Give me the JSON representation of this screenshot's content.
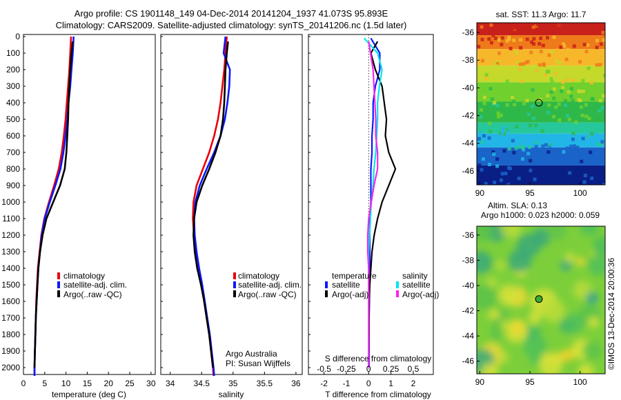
{
  "header": {
    "title_line1": "Argo profile: CS 1901148_149 04-Dec-2014 20141204_1937 41.073S 95.893E",
    "title_line2": "Climatology: CARS2009. Satellite-adjusted climatology: synTS_20141206.nc (1.5d later)"
  },
  "colors": {
    "climatology": "#e8000a",
    "satellite": "#0a18ff",
    "argo": "#000000",
    "sal_satellite": "#00e5ee",
    "sal_argo": "#ff22ee"
  },
  "chart_data": [
    {
      "type": "line",
      "panel": "temperature",
      "xlabel": "temperature (deg C)",
      "xlim": [
        0,
        31
      ],
      "xticks": [
        "0",
        "5",
        "10",
        "15",
        "20",
        "25",
        "30"
      ],
      "ylim": [
        2050,
        0
      ],
      "yticks": [
        "0",
        "100",
        "200",
        "300",
        "400",
        "500",
        "600",
        "700",
        "800",
        "900",
        "1000",
        "1100",
        "1200",
        "1300",
        "1400",
        "1500",
        "1600",
        "1700",
        "1800",
        "1900",
        "2000"
      ],
      "legend": [
        "climatology",
        "satellite-adj. clim.",
        "Argo(..raw -QC)"
      ],
      "series": [
        {
          "name": "climatology",
          "x": [
            11.2,
            11.0,
            10.8,
            10.5,
            10.2,
            9.9,
            9.5,
            9.0,
            8.3,
            7.2,
            6.0,
            4.9,
            4.2,
            3.8,
            3.4,
            3.2,
            3.0,
            2.9,
            2.8,
            2.7,
            2.6,
            2.6
          ],
          "y": [
            0,
            100,
            200,
            300,
            400,
            500,
            600,
            700,
            800,
            900,
            1000,
            1100,
            1200,
            1300,
            1400,
            1500,
            1600,
            1700,
            1800,
            1900,
            2000,
            2050
          ]
        },
        {
          "name": "satellite-adj. clim.",
          "x": [
            11.8,
            11.6,
            11.3,
            11.0,
            10.6,
            10.3,
            9.9,
            9.4,
            8.7,
            7.5,
            6.2,
            5.0,
            4.3,
            3.9,
            3.5,
            3.3,
            3.1,
            2.9,
            2.8,
            2.7,
            2.6,
            2.6
          ],
          "y": [
            0,
            100,
            200,
            300,
            400,
            500,
            600,
            700,
            800,
            900,
            1000,
            1100,
            1200,
            1300,
            1400,
            1500,
            1600,
            1700,
            1800,
            1900,
            2000,
            2050
          ]
        },
        {
          "name": "Argo(..raw -QC)",
          "x": [
            11.6,
            11.3,
            11.0,
            10.8,
            10.6,
            10.5,
            10.3,
            10.1,
            9.7,
            8.6,
            7.0,
            5.4,
            4.5,
            3.9,
            3.5,
            3.3,
            3.1,
            2.9,
            2.8,
            2.7,
            2.6
          ],
          "y": [
            30,
            100,
            200,
            300,
            400,
            500,
            600,
            700,
            800,
            900,
            1000,
            1100,
            1200,
            1300,
            1400,
            1500,
            1600,
            1700,
            1800,
            1900,
            2000
          ]
        }
      ]
    },
    {
      "type": "line",
      "panel": "salinity",
      "xlabel": "salinity",
      "xlim": [
        33.85,
        36.1
      ],
      "xticks": [
        "34",
        "34.5",
        "35",
        "35.5",
        "36"
      ],
      "legend": [
        "climatology",
        "satellite-adj. clim.",
        "Argo(..raw -QC)"
      ],
      "annotation": [
        "Argo Australia",
        "PI: Susan Wijffels"
      ],
      "series": [
        {
          "name": "climatology",
          "x": [
            34.9,
            34.88,
            34.86,
            34.83,
            34.8,
            34.76,
            34.7,
            34.62,
            34.52,
            34.42,
            34.37,
            34.36,
            34.38,
            34.41,
            34.45,
            34.5,
            34.54,
            34.58,
            34.62,
            34.65,
            34.68,
            34.69
          ],
          "y": [
            0,
            100,
            200,
            300,
            400,
            500,
            600,
            700,
            800,
            900,
            1000,
            1100,
            1200,
            1300,
            1400,
            1500,
            1600,
            1700,
            1800,
            1900,
            2000,
            2050
          ]
        },
        {
          "name": "satellite-adj. clim.",
          "x": [
            34.88,
            34.85,
            34.95,
            34.94,
            34.91,
            34.87,
            34.8,
            34.7,
            34.58,
            34.47,
            34.4,
            34.38,
            34.39,
            34.42,
            34.46,
            34.51,
            34.55,
            34.59,
            34.63,
            34.66,
            34.69,
            34.7
          ],
          "y": [
            0,
            100,
            200,
            300,
            400,
            500,
            600,
            700,
            800,
            900,
            1000,
            1100,
            1200,
            1300,
            1400,
            1500,
            1600,
            1700,
            1800,
            1900,
            2000,
            2050
          ]
        },
        {
          "name": "Argo(..raw -QC)",
          "x": [
            34.92,
            34.9,
            34.88,
            34.87,
            34.86,
            34.84,
            34.8,
            34.72,
            34.62,
            34.51,
            34.42,
            34.38,
            34.37,
            34.39,
            34.43,
            34.49,
            34.54,
            34.58,
            34.62,
            34.65,
            34.68
          ],
          "y": [
            30,
            100,
            200,
            300,
            400,
            500,
            600,
            700,
            800,
            900,
            1000,
            1100,
            1200,
            1300,
            1400,
            1500,
            1600,
            1700,
            1800,
            1900,
            2000
          ]
        }
      ]
    },
    {
      "type": "line",
      "panel": "difference",
      "xlabel": "T difference from climatology",
      "xlim": [
        -2.7,
        2.9
      ],
      "xticks": [
        "-2",
        "-1",
        "0",
        "1",
        "2"
      ],
      "top_label": "S difference from climatology",
      "sticks": [
        "-0.5",
        "-0.25",
        "0",
        "0.25",
        "0.5"
      ],
      "legend_headers": [
        "temperature",
        "salinity"
      ],
      "legend": [
        "satellite",
        "Argo(-adj)",
        "satellite",
        "Argo(-adj)"
      ],
      "series": [
        {
          "name": "satellite",
          "quantity": "temperature",
          "x": [
            0.1,
            0.5,
            0.5,
            0.3,
            0.2,
            0.2,
            0.15,
            0.15,
            0.1,
            0.1,
            0.1,
            0.05,
            0.05,
            0.05,
            0.05,
            0.03,
            0.03,
            0.02,
            0.02,
            0.02,
            0.02
          ],
          "y": [
            10,
            100,
            200,
            300,
            400,
            500,
            600,
            700,
            800,
            900,
            1000,
            1100,
            1200,
            1300,
            1400,
            1500,
            1600,
            1700,
            1800,
            1900,
            2000
          ]
        },
        {
          "name": "Argo(-adj)",
          "quantity": "temperature",
          "x": [
            0.4,
            0.1,
            0.3,
            0.6,
            0.7,
            0.8,
            0.75,
            0.9,
            1.2,
            0.9,
            0.6,
            0.4,
            0.25,
            0.15,
            0.1,
            0.05,
            0.03,
            0.02,
            0.02,
            0.01,
            0.0
          ],
          "y": [
            30,
            100,
            200,
            300,
            400,
            500,
            600,
            700,
            800,
            900,
            1000,
            1100,
            1200,
            1300,
            1400,
            1500,
            1600,
            1700,
            1800,
            1900,
            2000
          ]
        },
        {
          "name": "satellite",
          "quantity": "salinity",
          "x": [
            -0.05,
            0.1,
            0.15,
            0.12,
            0.1,
            0.1,
            0.09,
            0.08,
            0.06,
            0.05,
            0.03,
            0.02,
            0.01,
            0.0,
            0.0,
            0.0,
            0.0,
            0.0,
            0.0,
            0.0,
            0.0
          ],
          "y": [
            10,
            100,
            200,
            300,
            400,
            500,
            600,
            700,
            800,
            900,
            1000,
            1100,
            1200,
            1300,
            1400,
            1500,
            1600,
            1700,
            1800,
            1900,
            2000
          ]
        },
        {
          "name": "Argo(-adj)",
          "quantity": "salinity",
          "x": [
            0.0,
            0.02,
            0.05,
            0.06,
            0.07,
            0.08,
            0.08,
            0.1,
            0.1,
            0.06,
            0.03,
            0.0,
            -0.01,
            -0.01,
            0.0,
            0.0,
            0.0,
            0.0,
            0.0,
            0.0,
            0.0
          ],
          "y": [
            30,
            100,
            200,
            300,
            400,
            500,
            600,
            700,
            800,
            900,
            1000,
            1100,
            1200,
            1300,
            1400,
            1500,
            1600,
            1700,
            1800,
            1900,
            2000
          ]
        }
      ]
    },
    {
      "type": "heatmap",
      "panel": "sst_map",
      "title": "sat. SST: 11.3 Argo: 11.7",
      "xticks": [
        "90",
        "95",
        "100"
      ],
      "yticks": [
        "-36",
        "-38",
        "-40",
        "-42",
        "-44",
        "-46"
      ],
      "xlim": [
        89.7,
        102.5
      ],
      "ylim": [
        -47,
        -35.3
      ],
      "argo_position": [
        95.893,
        -41.073
      ]
    },
    {
      "type": "heatmap",
      "panel": "sla_map",
      "title_line1": "Altim. SLA: 0.13",
      "title_line2": "Argo h1000: 0.023 h2000: 0.059",
      "xticks": [
        "90",
        "95",
        "100"
      ],
      "yticks": [
        "-36",
        "-38",
        "-40",
        "-42",
        "-44",
        "-46"
      ],
      "xlim": [
        89.7,
        102.5
      ],
      "ylim": [
        -47,
        -35.3
      ],
      "argo_position": [
        95.893,
        -41.073
      ]
    }
  ],
  "footer": {
    "credit": "©IMOS 13-Dec-2014 20:00:36"
  }
}
